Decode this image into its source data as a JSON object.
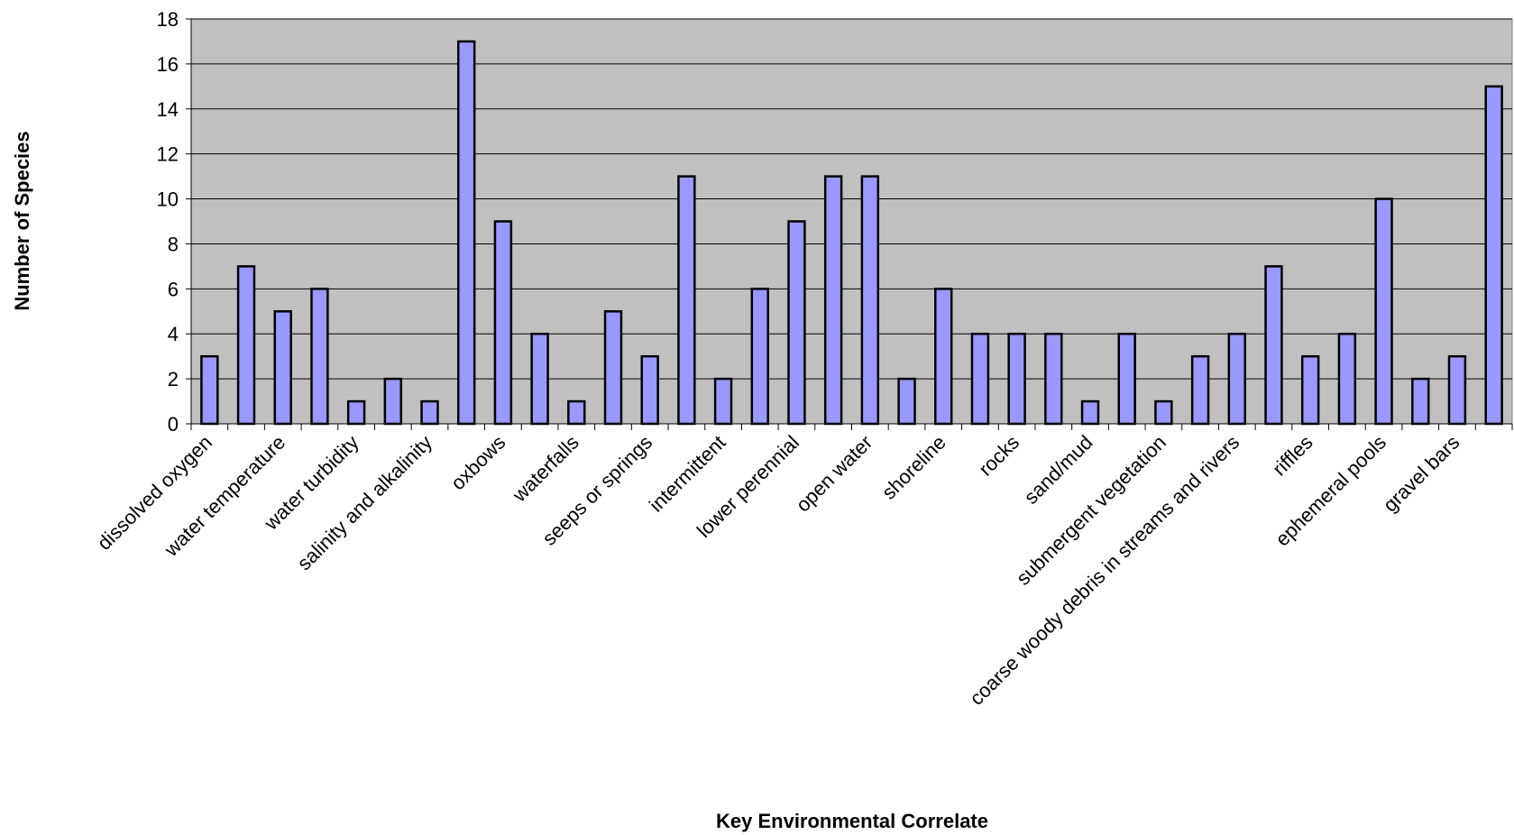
{
  "chart_data": {
    "type": "bar",
    "xlabel": "Key Environmental Correlate",
    "ylabel": "Number of Species",
    "categories": [
      "dissolved oxygen",
      null,
      "water temperature",
      null,
      "water turbidity",
      null,
      "salinity and alkalinity",
      null,
      "oxbows",
      null,
      "waterfalls",
      null,
      "seeps or springs",
      null,
      "intermittent",
      null,
      "lower perennial",
      null,
      "open water",
      null,
      "shoreline",
      null,
      "rocks",
      null,
      "sand/mud",
      null,
      "submergent vegetation",
      null,
      "coarse woody debris in streams and rivers",
      null,
      "riffles",
      null,
      "ephemeral pools",
      null,
      "gravel bars",
      null
    ],
    "values": [
      3,
      7,
      5,
      6,
      1,
      2,
      1,
      17,
      9,
      4,
      1,
      5,
      3,
      11,
      2,
      6,
      9,
      11,
      11,
      2,
      6,
      4,
      4,
      4,
      1,
      4,
      1,
      3,
      4,
      7,
      3,
      4,
      10,
      2,
      3,
      15
    ],
    "color": "#9999ff",
    "ylim": [
      0,
      18
    ],
    "yticks": [
      0,
      2,
      4,
      6,
      8,
      10,
      12,
      14,
      16,
      18
    ],
    "grid": true
  }
}
